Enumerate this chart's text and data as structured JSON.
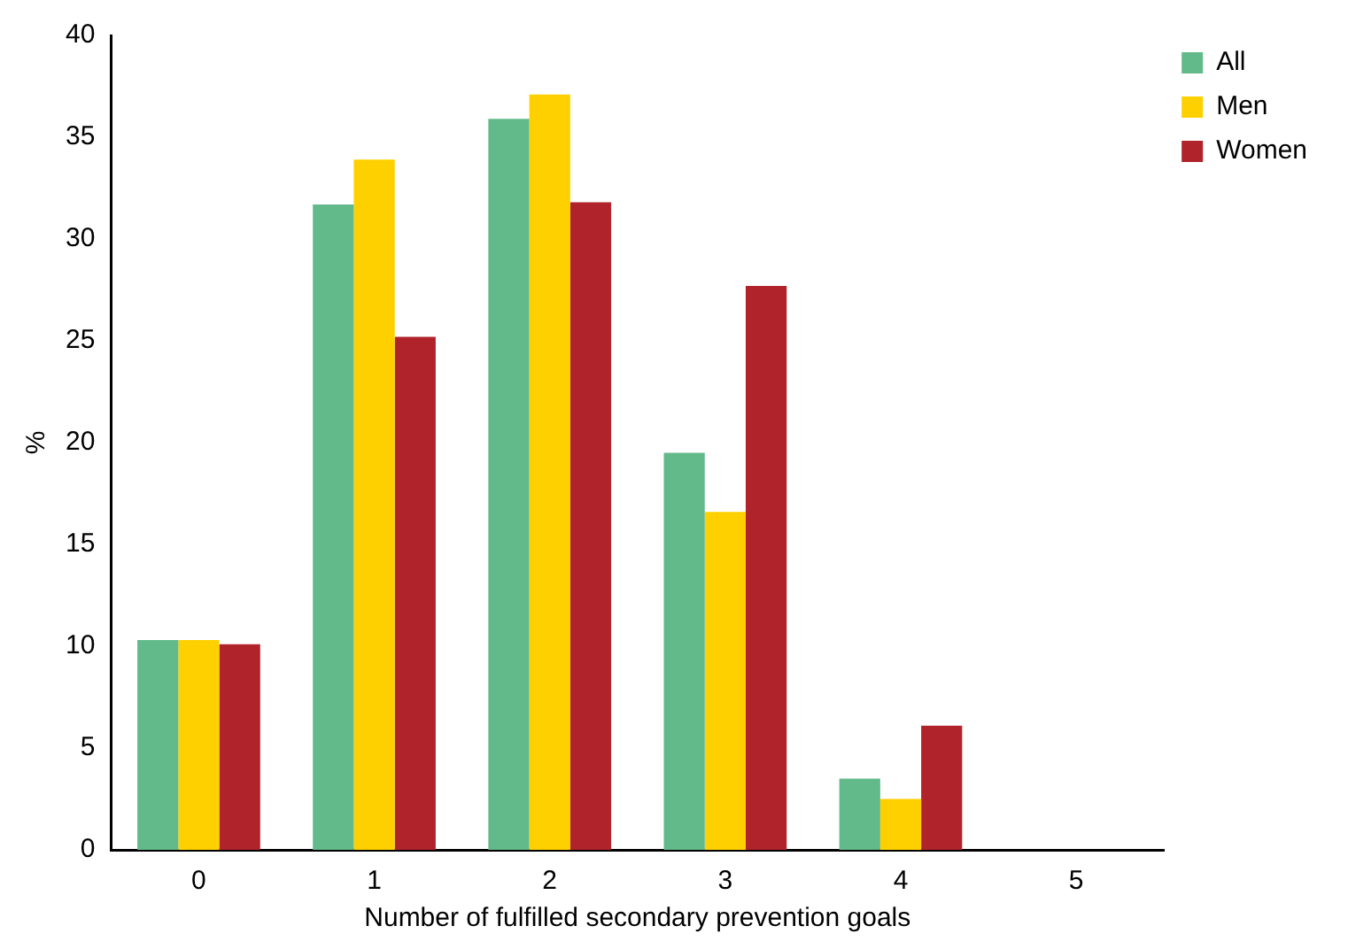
{
  "chart_data": {
    "type": "bar",
    "xlabel": "Number of fulfilled secondary prevention goals",
    "ylabel": "%",
    "categories": [
      "0",
      "1",
      "2",
      "3",
      "4",
      "5"
    ],
    "series": [
      {
        "name": "All",
        "color": "#62b98a",
        "values": [
          10.3,
          31.7,
          35.9,
          19.5,
          3.5,
          0
        ]
      },
      {
        "name": "Men",
        "color": "#ffd000",
        "values": [
          10.3,
          33.9,
          37.1,
          16.6,
          2.5,
          0
        ]
      },
      {
        "name": "Women",
        "color": "#b0232b",
        "values": [
          10.1,
          25.2,
          31.8,
          27.7,
          6.1,
          0
        ]
      }
    ],
    "ylim": [
      0,
      40
    ],
    "yticks": [
      0,
      5,
      10,
      15,
      20,
      25,
      30,
      35,
      40
    ],
    "grid": false,
    "legend": "top right"
  }
}
